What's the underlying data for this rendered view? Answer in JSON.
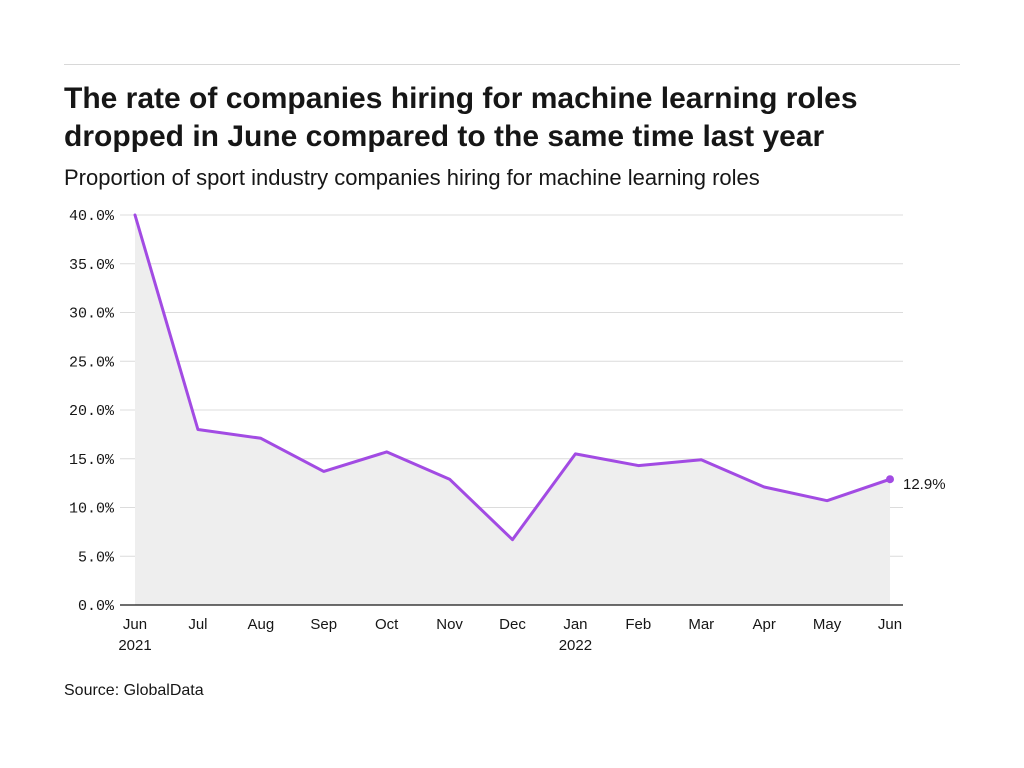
{
  "title": "The rate of companies hiring for machine learning roles dropped in June compared to the same time last year",
  "subtitle": "Proportion of sport industry companies hiring for machine learning roles",
  "source": "Source: GlobalData",
  "colors": {
    "line": "#a24be3",
    "area": "#eeeeee",
    "grid": "#dcdcdc",
    "axis": "#161616",
    "text": "#161616"
  },
  "chart_data": {
    "type": "area",
    "title": "The rate of companies hiring for machine learning roles dropped in June compared to the same time last year",
    "subtitle": "Proportion of sport industry companies hiring for machine learning roles",
    "xlabel": "",
    "ylabel": "",
    "categories": [
      "Jun 2021",
      "Jul 2021",
      "Aug 2021",
      "Sep 2021",
      "Oct 2021",
      "Nov 2021",
      "Dec 2021",
      "Jan 2022",
      "Feb 2022",
      "Mar 2022",
      "Apr 2022",
      "May 2022",
      "Jun 2022"
    ],
    "x_tick_labels": [
      [
        "Jun",
        "2021"
      ],
      [
        "Jul"
      ],
      [
        "Aug"
      ],
      [
        "Sep"
      ],
      [
        "Oct"
      ],
      [
        "Nov"
      ],
      [
        "Dec"
      ],
      [
        "Jan",
        "2022"
      ],
      [
        "Feb"
      ],
      [
        "Mar"
      ],
      [
        "Apr"
      ],
      [
        "May"
      ],
      [
        "Jun"
      ]
    ],
    "series": [
      {
        "values": [
          40.0,
          18.0,
          17.1,
          13.7,
          15.7,
          12.9,
          6.7,
          15.5,
          14.3,
          14.9,
          12.1,
          10.7,
          12.9
        ]
      }
    ],
    "ylim": [
      0,
      40
    ],
    "y_ticks": [
      0,
      5,
      10,
      15,
      20,
      25,
      30,
      35,
      40
    ],
    "y_tick_labels": [
      "0.0%",
      "5.0%",
      "10.0%",
      "15.0%",
      "20.0%",
      "25.0%",
      "30.0%",
      "35.0%",
      "40.0%"
    ],
    "end_label": "12.9%",
    "grid": true,
    "legend": "none"
  }
}
